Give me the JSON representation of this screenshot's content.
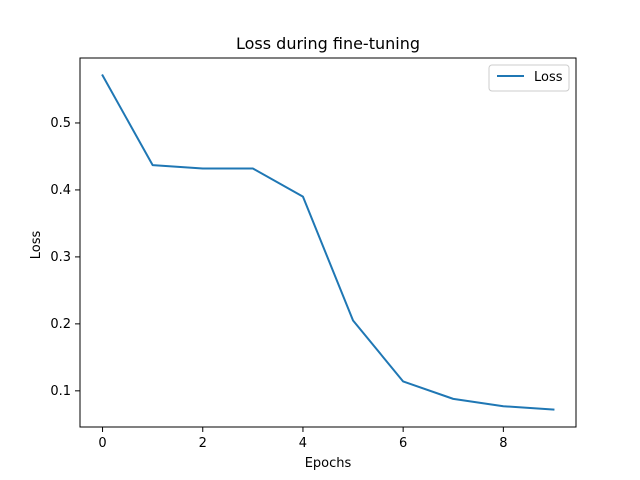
{
  "chart_data": {
    "type": "line",
    "title": "Loss during fine-tuning",
    "xlabel": "Epochs",
    "ylabel": "Loss",
    "xlim": [
      -0.45,
      9.45
    ],
    "ylim": [
      0.046,
      0.597
    ],
    "xticks": [
      0,
      2,
      4,
      6,
      8
    ],
    "xtick_labels": [
      "0",
      "2",
      "4",
      "6",
      "8"
    ],
    "yticks": [
      0.1,
      0.2,
      0.3,
      0.4,
      0.5
    ],
    "ytick_labels": [
      "0.1",
      "0.2",
      "0.3",
      "0.4",
      "0.5"
    ],
    "grid": false,
    "legend_position": "top-right",
    "series": [
      {
        "name": "Loss",
        "color": "#1f77b4",
        "x": [
          0,
          1,
          2,
          3,
          4,
          5,
          6,
          7,
          8,
          9
        ],
        "y": [
          0.571,
          0.437,
          0.432,
          0.432,
          0.39,
          0.205,
          0.114,
          0.088,
          0.077,
          0.072
        ]
      }
    ]
  }
}
